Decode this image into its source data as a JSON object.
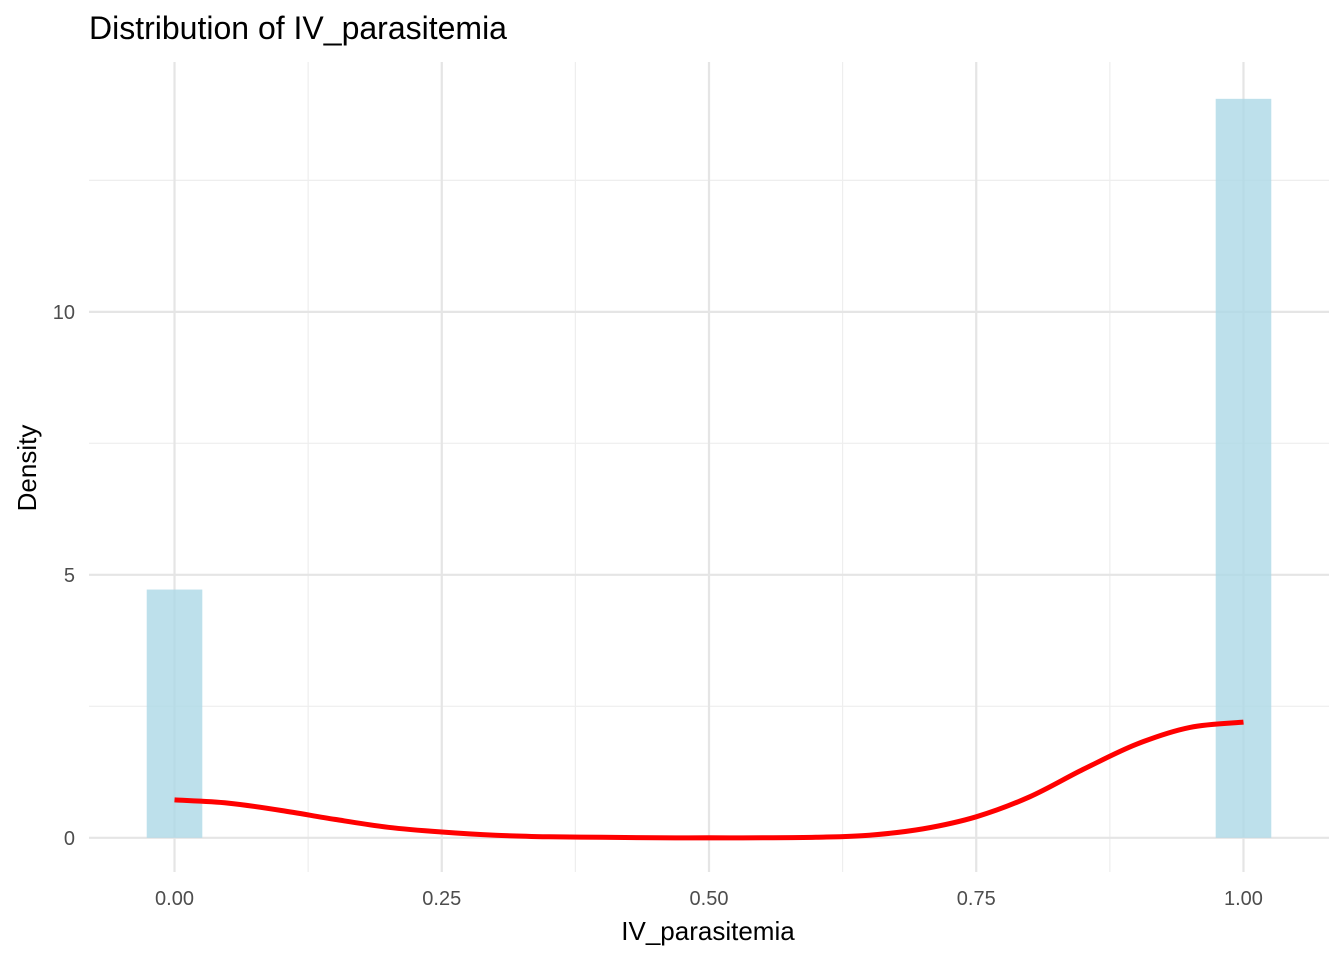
{
  "chart_data": {
    "type": "histogram",
    "title": "Distribution of IV_parasitemia",
    "xlabel": "IV_parasitemia",
    "ylabel": "Density",
    "xlim": [
      -0.08,
      1.08
    ],
    "ylim": [
      -0.65,
      14.75
    ],
    "x_ticks": [
      0.0,
      0.25,
      0.5,
      0.75,
      1.0
    ],
    "x_tick_labels": [
      "0.00",
      "0.25",
      "0.50",
      "0.75",
      "1.00"
    ],
    "y_ticks": [
      0,
      5,
      10
    ],
    "y_tick_labels": [
      "0",
      "5",
      "10"
    ],
    "x_minor_ticks": [
      0.125,
      0.375,
      0.625,
      0.875
    ],
    "y_minor_ticks": [
      2.5,
      7.5,
      12.5
    ],
    "grid": true,
    "bars": [
      {
        "x0": -0.026,
        "x1": 0.026,
        "density": 4.72
      },
      {
        "x0": 0.974,
        "x1": 1.026,
        "density": 14.05
      }
    ],
    "bar_color": "#add8e6",
    "density_curve": {
      "color": "#ff0000",
      "x": [
        0.0,
        0.05,
        0.1,
        0.15,
        0.2,
        0.25,
        0.3,
        0.35,
        0.4,
        0.45,
        0.5,
        0.55,
        0.6,
        0.65,
        0.7,
        0.75,
        0.8,
        0.85,
        0.9,
        0.95,
        1.0
      ],
      "y": [
        0.72,
        0.66,
        0.52,
        0.35,
        0.2,
        0.11,
        0.05,
        0.02,
        0.01,
        0.0,
        0.0,
        0.0,
        0.01,
        0.05,
        0.17,
        0.4,
        0.78,
        1.3,
        1.78,
        2.1,
        2.2
      ]
    }
  }
}
